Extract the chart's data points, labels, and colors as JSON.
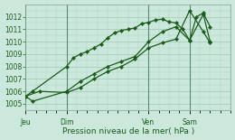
{
  "background_color": "#cce8dc",
  "grid_color": "#aaccbb",
  "plot_bg": "#cce8dc",
  "line_color": "#1a5c1a",
  "xlabel": "Pression niveau de la mer( hPa )",
  "xtick_labels": [
    "Jeu",
    "Dim",
    "Ven",
    "Sam"
  ],
  "xtick_positions": [
    0,
    24,
    72,
    96
  ],
  "ylim": [
    1004.5,
    1013.0
  ],
  "yticks": [
    1005,
    1006,
    1007,
    1008,
    1009,
    1010,
    1011,
    1012
  ],
  "xmin": 0,
  "xmax": 120,
  "line1_x": [
    0,
    4,
    24,
    28,
    32,
    36,
    40,
    44,
    48,
    52,
    56,
    60,
    64,
    68,
    72,
    76,
    80,
    84,
    88,
    92,
    96,
    100,
    104,
    108
  ],
  "line1_y": [
    1005.6,
    1006.0,
    1008.0,
    1008.7,
    1009.0,
    1009.2,
    1009.5,
    1009.8,
    1010.3,
    1010.7,
    1010.9,
    1011.0,
    1011.1,
    1011.45,
    1011.55,
    1011.75,
    1011.8,
    1011.6,
    1011.5,
    1011.0,
    1010.1,
    1012.0,
    1012.3,
    1011.2
  ],
  "line2_x": [
    0,
    4,
    24,
    32,
    40,
    48,
    56,
    64,
    72,
    80,
    88,
    96,
    104,
    108
  ],
  "line2_y": [
    1005.6,
    1005.2,
    1006.0,
    1006.8,
    1007.4,
    1008.0,
    1008.4,
    1008.8,
    1010.0,
    1010.8,
    1011.2,
    1010.1,
    1012.2,
    1010.0
  ],
  "line3_x": [
    0,
    8,
    24,
    32,
    40,
    48,
    56,
    64,
    72,
    80,
    88,
    96,
    104,
    108
  ],
  "line3_y": [
    1005.6,
    1006.0,
    1005.9,
    1006.3,
    1007.0,
    1007.6,
    1008.0,
    1008.6,
    1009.5,
    1009.9,
    1010.2,
    1012.5,
    1010.8,
    1009.9
  ]
}
